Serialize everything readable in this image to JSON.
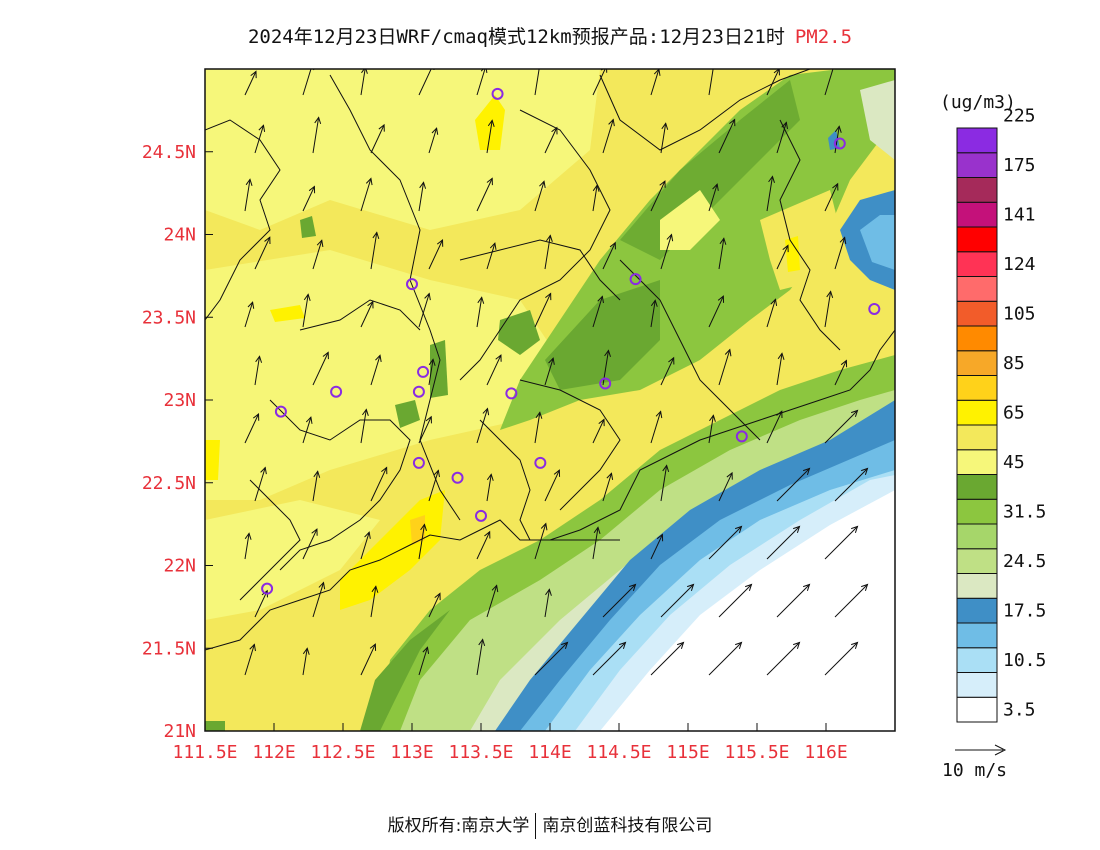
{
  "title": {
    "main": "2024年12月23日WRF/cmaq模式12km预报产品:12月23日21时",
    "species": "PM2.5"
  },
  "map": {
    "lon_min": 111.5,
    "lon_max": 116.5,
    "lat_min": 21,
    "lat_max": 25,
    "x_ticks": [
      "111.5E",
      "112E",
      "112.5E",
      "113E",
      "113.5E",
      "114E",
      "114.5E",
      "115E",
      "115.5E",
      "116E"
    ],
    "y_ticks": [
      "21N",
      "21.5N",
      "22N",
      "22.5N",
      "23N",
      "23.5N",
      "24N",
      "24.5N"
    ],
    "tick_color": "#e8313a"
  },
  "legend": {
    "unit": "(ug/m3)",
    "colors": [
      "#ffffff",
      "#d6eefa",
      "#aadff5",
      "#6fbde6",
      "#3f8fc6",
      "#dbe8c2",
      "#bfe085",
      "#a6d66a",
      "#8cc63f",
      "#6aa831",
      "#f6f77a",
      "#f3e85b",
      "#fff200",
      "#ffd21a",
      "#f7a828",
      "#ff8a00",
      "#f25c2a",
      "#ff6b6b",
      "#ff3355",
      "#ff0000",
      "#c4117a",
      "#a52a5a",
      "#9932cc",
      "#8b2be2"
    ],
    "labels": [
      "3.5",
      "10.5",
      "17.5",
      "24.5",
      "31.5",
      "45",
      "65",
      "85",
      "105",
      "124",
      "141",
      "175",
      "225"
    ]
  },
  "wind_reference": {
    "label": "10 m/s"
  },
  "stations": [
    {
      "lon": 113.62,
      "lat": 24.85
    },
    {
      "lon": 116.1,
      "lat": 24.55
    },
    {
      "lon": 113.0,
      "lat": 23.7
    },
    {
      "lon": 114.62,
      "lat": 23.73
    },
    {
      "lon": 116.35,
      "lat": 23.55
    },
    {
      "lon": 113.08,
      "lat": 23.17
    },
    {
      "lon": 112.45,
      "lat": 23.05
    },
    {
      "lon": 113.05,
      "lat": 23.05
    },
    {
      "lon": 113.72,
      "lat": 23.04
    },
    {
      "lon": 114.4,
      "lat": 23.1
    },
    {
      "lon": 112.05,
      "lat": 22.93
    },
    {
      "lon": 115.39,
      "lat": 22.78
    },
    {
      "lon": 113.05,
      "lat": 22.62
    },
    {
      "lon": 113.93,
      "lat": 22.62
    },
    {
      "lon": 113.33,
      "lat": 22.53
    },
    {
      "lon": 113.5,
      "lat": 22.3
    },
    {
      "lon": 111.95,
      "lat": 21.86
    }
  ],
  "footer": {
    "copyright": "版权所有:南京大学",
    "company": "南京创蓝科技有限公司"
  }
}
